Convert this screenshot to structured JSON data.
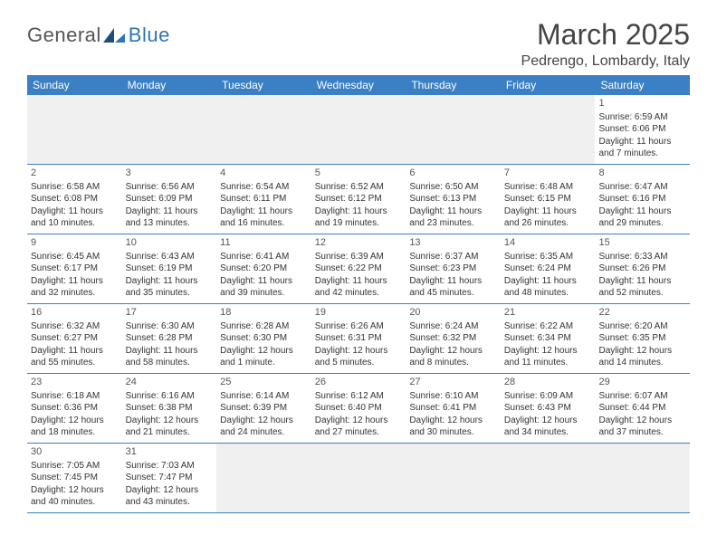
{
  "logo": {
    "text1": "General",
    "text2": "Blue"
  },
  "title": "March 2025",
  "location": "Pedrengo, Lombardy, Italy",
  "colors": {
    "header_bg": "#3b7fc4",
    "header_text": "#ffffff",
    "border": "#3b7fc4",
    "empty_bg": "#f0f0f0",
    "body_text": "#333333",
    "title_text": "#444444",
    "logo_gray": "#555555",
    "logo_blue": "#2e75b6"
  },
  "weekdays": [
    "Sunday",
    "Monday",
    "Tuesday",
    "Wednesday",
    "Thursday",
    "Friday",
    "Saturday"
  ],
  "weeks": [
    [
      null,
      null,
      null,
      null,
      null,
      null,
      {
        "n": "1",
        "sr": "Sunrise: 6:59 AM",
        "ss": "Sunset: 6:06 PM",
        "d1": "Daylight: 11 hours",
        "d2": "and 7 minutes."
      }
    ],
    [
      {
        "n": "2",
        "sr": "Sunrise: 6:58 AM",
        "ss": "Sunset: 6:08 PM",
        "d1": "Daylight: 11 hours",
        "d2": "and 10 minutes."
      },
      {
        "n": "3",
        "sr": "Sunrise: 6:56 AM",
        "ss": "Sunset: 6:09 PM",
        "d1": "Daylight: 11 hours",
        "d2": "and 13 minutes."
      },
      {
        "n": "4",
        "sr": "Sunrise: 6:54 AM",
        "ss": "Sunset: 6:11 PM",
        "d1": "Daylight: 11 hours",
        "d2": "and 16 minutes."
      },
      {
        "n": "5",
        "sr": "Sunrise: 6:52 AM",
        "ss": "Sunset: 6:12 PM",
        "d1": "Daylight: 11 hours",
        "d2": "and 19 minutes."
      },
      {
        "n": "6",
        "sr": "Sunrise: 6:50 AM",
        "ss": "Sunset: 6:13 PM",
        "d1": "Daylight: 11 hours",
        "d2": "and 23 minutes."
      },
      {
        "n": "7",
        "sr": "Sunrise: 6:48 AM",
        "ss": "Sunset: 6:15 PM",
        "d1": "Daylight: 11 hours",
        "d2": "and 26 minutes."
      },
      {
        "n": "8",
        "sr": "Sunrise: 6:47 AM",
        "ss": "Sunset: 6:16 PM",
        "d1": "Daylight: 11 hours",
        "d2": "and 29 minutes."
      }
    ],
    [
      {
        "n": "9",
        "sr": "Sunrise: 6:45 AM",
        "ss": "Sunset: 6:17 PM",
        "d1": "Daylight: 11 hours",
        "d2": "and 32 minutes."
      },
      {
        "n": "10",
        "sr": "Sunrise: 6:43 AM",
        "ss": "Sunset: 6:19 PM",
        "d1": "Daylight: 11 hours",
        "d2": "and 35 minutes."
      },
      {
        "n": "11",
        "sr": "Sunrise: 6:41 AM",
        "ss": "Sunset: 6:20 PM",
        "d1": "Daylight: 11 hours",
        "d2": "and 39 minutes."
      },
      {
        "n": "12",
        "sr": "Sunrise: 6:39 AM",
        "ss": "Sunset: 6:22 PM",
        "d1": "Daylight: 11 hours",
        "d2": "and 42 minutes."
      },
      {
        "n": "13",
        "sr": "Sunrise: 6:37 AM",
        "ss": "Sunset: 6:23 PM",
        "d1": "Daylight: 11 hours",
        "d2": "and 45 minutes."
      },
      {
        "n": "14",
        "sr": "Sunrise: 6:35 AM",
        "ss": "Sunset: 6:24 PM",
        "d1": "Daylight: 11 hours",
        "d2": "and 48 minutes."
      },
      {
        "n": "15",
        "sr": "Sunrise: 6:33 AM",
        "ss": "Sunset: 6:26 PM",
        "d1": "Daylight: 11 hours",
        "d2": "and 52 minutes."
      }
    ],
    [
      {
        "n": "16",
        "sr": "Sunrise: 6:32 AM",
        "ss": "Sunset: 6:27 PM",
        "d1": "Daylight: 11 hours",
        "d2": "and 55 minutes."
      },
      {
        "n": "17",
        "sr": "Sunrise: 6:30 AM",
        "ss": "Sunset: 6:28 PM",
        "d1": "Daylight: 11 hours",
        "d2": "and 58 minutes."
      },
      {
        "n": "18",
        "sr": "Sunrise: 6:28 AM",
        "ss": "Sunset: 6:30 PM",
        "d1": "Daylight: 12 hours",
        "d2": "and 1 minute."
      },
      {
        "n": "19",
        "sr": "Sunrise: 6:26 AM",
        "ss": "Sunset: 6:31 PM",
        "d1": "Daylight: 12 hours",
        "d2": "and 5 minutes."
      },
      {
        "n": "20",
        "sr": "Sunrise: 6:24 AM",
        "ss": "Sunset: 6:32 PM",
        "d1": "Daylight: 12 hours",
        "d2": "and 8 minutes."
      },
      {
        "n": "21",
        "sr": "Sunrise: 6:22 AM",
        "ss": "Sunset: 6:34 PM",
        "d1": "Daylight: 12 hours",
        "d2": "and 11 minutes."
      },
      {
        "n": "22",
        "sr": "Sunrise: 6:20 AM",
        "ss": "Sunset: 6:35 PM",
        "d1": "Daylight: 12 hours",
        "d2": "and 14 minutes."
      }
    ],
    [
      {
        "n": "23",
        "sr": "Sunrise: 6:18 AM",
        "ss": "Sunset: 6:36 PM",
        "d1": "Daylight: 12 hours",
        "d2": "and 18 minutes."
      },
      {
        "n": "24",
        "sr": "Sunrise: 6:16 AM",
        "ss": "Sunset: 6:38 PM",
        "d1": "Daylight: 12 hours",
        "d2": "and 21 minutes."
      },
      {
        "n": "25",
        "sr": "Sunrise: 6:14 AM",
        "ss": "Sunset: 6:39 PM",
        "d1": "Daylight: 12 hours",
        "d2": "and 24 minutes."
      },
      {
        "n": "26",
        "sr": "Sunrise: 6:12 AM",
        "ss": "Sunset: 6:40 PM",
        "d1": "Daylight: 12 hours",
        "d2": "and 27 minutes."
      },
      {
        "n": "27",
        "sr": "Sunrise: 6:10 AM",
        "ss": "Sunset: 6:41 PM",
        "d1": "Daylight: 12 hours",
        "d2": "and 30 minutes."
      },
      {
        "n": "28",
        "sr": "Sunrise: 6:09 AM",
        "ss": "Sunset: 6:43 PM",
        "d1": "Daylight: 12 hours",
        "d2": "and 34 minutes."
      },
      {
        "n": "29",
        "sr": "Sunrise: 6:07 AM",
        "ss": "Sunset: 6:44 PM",
        "d1": "Daylight: 12 hours",
        "d2": "and 37 minutes."
      }
    ],
    [
      {
        "n": "30",
        "sr": "Sunrise: 7:05 AM",
        "ss": "Sunset: 7:45 PM",
        "d1": "Daylight: 12 hours",
        "d2": "and 40 minutes."
      },
      {
        "n": "31",
        "sr": "Sunrise: 7:03 AM",
        "ss": "Sunset: 7:47 PM",
        "d1": "Daylight: 12 hours",
        "d2": "and 43 minutes."
      },
      null,
      null,
      null,
      null,
      null
    ]
  ]
}
